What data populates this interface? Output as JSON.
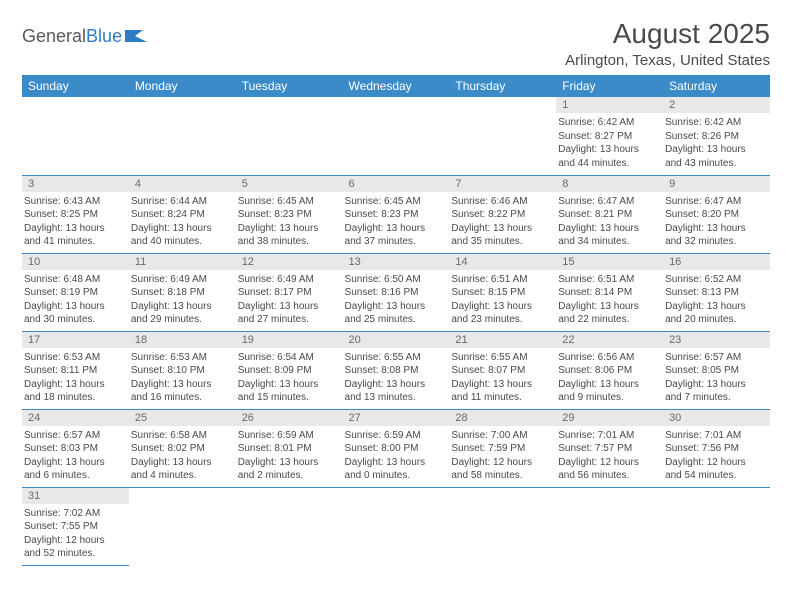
{
  "logo": {
    "text_general": "General",
    "text_blue": "Blue"
  },
  "title": {
    "month": "August 2025",
    "location": "Arlington, Texas, United States"
  },
  "colors": {
    "header_bg": "#3b8bc9",
    "header_text": "#ffffff",
    "daynum_bg": "#e8e8e8",
    "border": "#3b8bc9",
    "text": "#4a4a4a"
  },
  "day_headers": [
    "Sunday",
    "Monday",
    "Tuesday",
    "Wednesday",
    "Thursday",
    "Friday",
    "Saturday"
  ],
  "weeks": [
    [
      {
        "n": "",
        "lines": []
      },
      {
        "n": "",
        "lines": []
      },
      {
        "n": "",
        "lines": []
      },
      {
        "n": "",
        "lines": []
      },
      {
        "n": "",
        "lines": []
      },
      {
        "n": "1",
        "lines": [
          "Sunrise: 6:42 AM",
          "Sunset: 8:27 PM",
          "Daylight: 13 hours and 44 minutes."
        ]
      },
      {
        "n": "2",
        "lines": [
          "Sunrise: 6:42 AM",
          "Sunset: 8:26 PM",
          "Daylight: 13 hours and 43 minutes."
        ]
      }
    ],
    [
      {
        "n": "3",
        "lines": [
          "Sunrise: 6:43 AM",
          "Sunset: 8:25 PM",
          "Daylight: 13 hours and 41 minutes."
        ]
      },
      {
        "n": "4",
        "lines": [
          "Sunrise: 6:44 AM",
          "Sunset: 8:24 PM",
          "Daylight: 13 hours and 40 minutes."
        ]
      },
      {
        "n": "5",
        "lines": [
          "Sunrise: 6:45 AM",
          "Sunset: 8:23 PM",
          "Daylight: 13 hours and 38 minutes."
        ]
      },
      {
        "n": "6",
        "lines": [
          "Sunrise: 6:45 AM",
          "Sunset: 8:23 PM",
          "Daylight: 13 hours and 37 minutes."
        ]
      },
      {
        "n": "7",
        "lines": [
          "Sunrise: 6:46 AM",
          "Sunset: 8:22 PM",
          "Daylight: 13 hours and 35 minutes."
        ]
      },
      {
        "n": "8",
        "lines": [
          "Sunrise: 6:47 AM",
          "Sunset: 8:21 PM",
          "Daylight: 13 hours and 34 minutes."
        ]
      },
      {
        "n": "9",
        "lines": [
          "Sunrise: 6:47 AM",
          "Sunset: 8:20 PM",
          "Daylight: 13 hours and 32 minutes."
        ]
      }
    ],
    [
      {
        "n": "10",
        "lines": [
          "Sunrise: 6:48 AM",
          "Sunset: 8:19 PM",
          "Daylight: 13 hours and 30 minutes."
        ]
      },
      {
        "n": "11",
        "lines": [
          "Sunrise: 6:49 AM",
          "Sunset: 8:18 PM",
          "Daylight: 13 hours and 29 minutes."
        ]
      },
      {
        "n": "12",
        "lines": [
          "Sunrise: 6:49 AM",
          "Sunset: 8:17 PM",
          "Daylight: 13 hours and 27 minutes."
        ]
      },
      {
        "n": "13",
        "lines": [
          "Sunrise: 6:50 AM",
          "Sunset: 8:16 PM",
          "Daylight: 13 hours and 25 minutes."
        ]
      },
      {
        "n": "14",
        "lines": [
          "Sunrise: 6:51 AM",
          "Sunset: 8:15 PM",
          "Daylight: 13 hours and 23 minutes."
        ]
      },
      {
        "n": "15",
        "lines": [
          "Sunrise: 6:51 AM",
          "Sunset: 8:14 PM",
          "Daylight: 13 hours and 22 minutes."
        ]
      },
      {
        "n": "16",
        "lines": [
          "Sunrise: 6:52 AM",
          "Sunset: 8:13 PM",
          "Daylight: 13 hours and 20 minutes."
        ]
      }
    ],
    [
      {
        "n": "17",
        "lines": [
          "Sunrise: 6:53 AM",
          "Sunset: 8:11 PM",
          "Daylight: 13 hours and 18 minutes."
        ]
      },
      {
        "n": "18",
        "lines": [
          "Sunrise: 6:53 AM",
          "Sunset: 8:10 PM",
          "Daylight: 13 hours and 16 minutes."
        ]
      },
      {
        "n": "19",
        "lines": [
          "Sunrise: 6:54 AM",
          "Sunset: 8:09 PM",
          "Daylight: 13 hours and 15 minutes."
        ]
      },
      {
        "n": "20",
        "lines": [
          "Sunrise: 6:55 AM",
          "Sunset: 8:08 PM",
          "Daylight: 13 hours and 13 minutes."
        ]
      },
      {
        "n": "21",
        "lines": [
          "Sunrise: 6:55 AM",
          "Sunset: 8:07 PM",
          "Daylight: 13 hours and 11 minutes."
        ]
      },
      {
        "n": "22",
        "lines": [
          "Sunrise: 6:56 AM",
          "Sunset: 8:06 PM",
          "Daylight: 13 hours and 9 minutes."
        ]
      },
      {
        "n": "23",
        "lines": [
          "Sunrise: 6:57 AM",
          "Sunset: 8:05 PM",
          "Daylight: 13 hours and 7 minutes."
        ]
      }
    ],
    [
      {
        "n": "24",
        "lines": [
          "Sunrise: 6:57 AM",
          "Sunset: 8:03 PM",
          "Daylight: 13 hours and 6 minutes."
        ]
      },
      {
        "n": "25",
        "lines": [
          "Sunrise: 6:58 AM",
          "Sunset: 8:02 PM",
          "Daylight: 13 hours and 4 minutes."
        ]
      },
      {
        "n": "26",
        "lines": [
          "Sunrise: 6:59 AM",
          "Sunset: 8:01 PM",
          "Daylight: 13 hours and 2 minutes."
        ]
      },
      {
        "n": "27",
        "lines": [
          "Sunrise: 6:59 AM",
          "Sunset: 8:00 PM",
          "Daylight: 13 hours and 0 minutes."
        ]
      },
      {
        "n": "28",
        "lines": [
          "Sunrise: 7:00 AM",
          "Sunset: 7:59 PM",
          "Daylight: 12 hours and 58 minutes."
        ]
      },
      {
        "n": "29",
        "lines": [
          "Sunrise: 7:01 AM",
          "Sunset: 7:57 PM",
          "Daylight: 12 hours and 56 minutes."
        ]
      },
      {
        "n": "30",
        "lines": [
          "Sunrise: 7:01 AM",
          "Sunset: 7:56 PM",
          "Daylight: 12 hours and 54 minutes."
        ]
      }
    ],
    [
      {
        "n": "31",
        "lines": [
          "Sunrise: 7:02 AM",
          "Sunset: 7:55 PM",
          "Daylight: 12 hours and 52 minutes."
        ]
      },
      {
        "n": "",
        "lines": []
      },
      {
        "n": "",
        "lines": []
      },
      {
        "n": "",
        "lines": []
      },
      {
        "n": "",
        "lines": []
      },
      {
        "n": "",
        "lines": []
      },
      {
        "n": "",
        "lines": []
      }
    ]
  ]
}
